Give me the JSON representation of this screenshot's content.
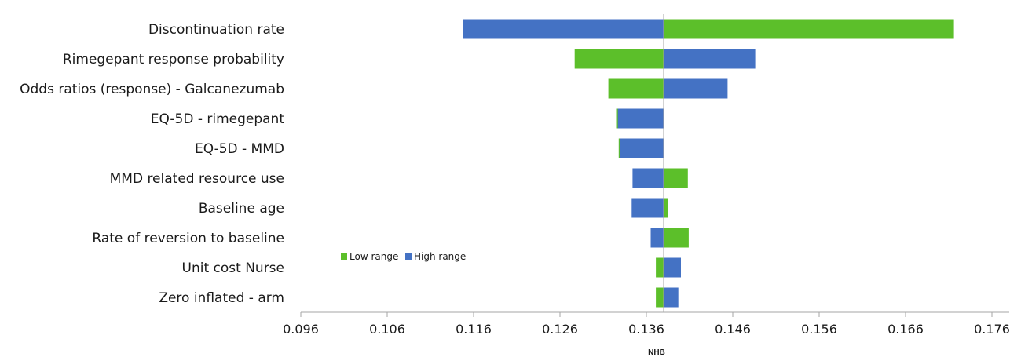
{
  "chart_data": {
    "type": "bar",
    "orientation": "horizontal-tornado",
    "xlabel": "NHB",
    "ylabel": "",
    "baseline": 0.138,
    "xlim": [
      0.096,
      0.178
    ],
    "xticks": [
      0.096,
      0.106,
      0.116,
      0.126,
      0.136,
      0.146,
      0.156,
      0.166,
      0.176
    ],
    "xtick_labels": [
      "0.096",
      "0.106",
      "0.116",
      "0.126",
      "0.136",
      "0.146",
      "0.156",
      "0.166",
      "0.176"
    ],
    "categories": [
      "Discontinuation rate",
      "Rimegepant response probability",
      "Odds ratios (response) - Galcanezumab",
      "EQ-5D - rimegepant",
      "EQ-5D - MMD",
      "MMD related resource use",
      "Baseline age",
      "Rate of reversion to baseline",
      "Unit cost Nurse",
      "Zero inflated - arm"
    ],
    "series": [
      {
        "name": "Low range",
        "color": "#5cbf2a",
        "values": [
          0.1716,
          0.1277,
          0.1316,
          0.1325,
          0.1328,
          0.1408,
          0.1385,
          0.1409,
          0.1371,
          0.1371
        ]
      },
      {
        "name": "High range",
        "color": "#4472c4",
        "values": [
          0.1148,
          0.1486,
          0.1454,
          0.1327,
          0.1329,
          0.1344,
          0.1343,
          0.1365,
          0.14,
          0.1397
        ]
      }
    ],
    "legend": {
      "position": "left-inside",
      "entries": [
        "Low range",
        "High range"
      ]
    },
    "grid": false
  }
}
